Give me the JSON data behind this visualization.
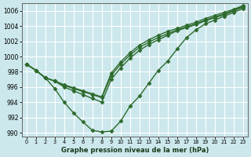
{
  "xlabel": "Graphe pression niveau de la mer (hPa)",
  "bg_color": "#cce8ec",
  "grid_color": "#ffffff",
  "line_color": "#2d6a2d",
  "marker": "D",
  "marker_size": 2.5,
  "linewidth": 1.0,
  "xlim": [
    -0.5,
    23.5
  ],
  "ylim": [
    989.5,
    1007.0
  ],
  "yticks": [
    990,
    992,
    994,
    996,
    998,
    1000,
    1002,
    1004,
    1006
  ],
  "xticks": [
    0,
    1,
    2,
    3,
    4,
    5,
    6,
    7,
    8,
    9,
    10,
    11,
    12,
    13,
    14,
    15,
    16,
    17,
    18,
    19,
    20,
    21,
    22,
    23
  ],
  "series": [
    [
      999.0,
      998.2,
      997.2,
      995.8,
      994.0,
      992.6,
      991.4,
      990.3,
      990.1,
      990.2,
      991.5,
      993.5,
      994.8,
      996.5,
      998.2,
      999.4,
      1001.0,
      1002.5,
      1003.5,
      1004.3,
      1004.8,
      1005.3,
      1005.8,
      1006.3
    ],
    [
      999.0,
      998.2,
      997.2,
      996.8,
      996.0,
      995.5,
      995.0,
      994.5,
      994.0,
      997.0,
      998.5,
      999.8,
      1000.8,
      1001.6,
      1002.2,
      1002.8,
      1003.4,
      1003.8,
      1004.2,
      1004.7,
      1005.1,
      1005.5,
      1006.0,
      1006.5
    ],
    [
      999.0,
      998.2,
      997.2,
      996.8,
      996.2,
      995.8,
      995.4,
      995.0,
      994.6,
      997.5,
      999.0,
      1000.2,
      1001.2,
      1001.9,
      1002.5,
      1003.0,
      1003.5,
      1003.9,
      1004.3,
      1004.8,
      1005.2,
      1005.6,
      1006.1,
      1006.6
    ],
    [
      999.0,
      998.2,
      997.2,
      996.8,
      996.3,
      995.9,
      995.5,
      995.1,
      994.7,
      997.8,
      999.3,
      1000.5,
      1001.5,
      1002.2,
      1002.8,
      1003.3,
      1003.7,
      1004.1,
      1004.5,
      1005.0,
      1005.4,
      1005.8,
      1006.2,
      1006.7
    ]
  ]
}
